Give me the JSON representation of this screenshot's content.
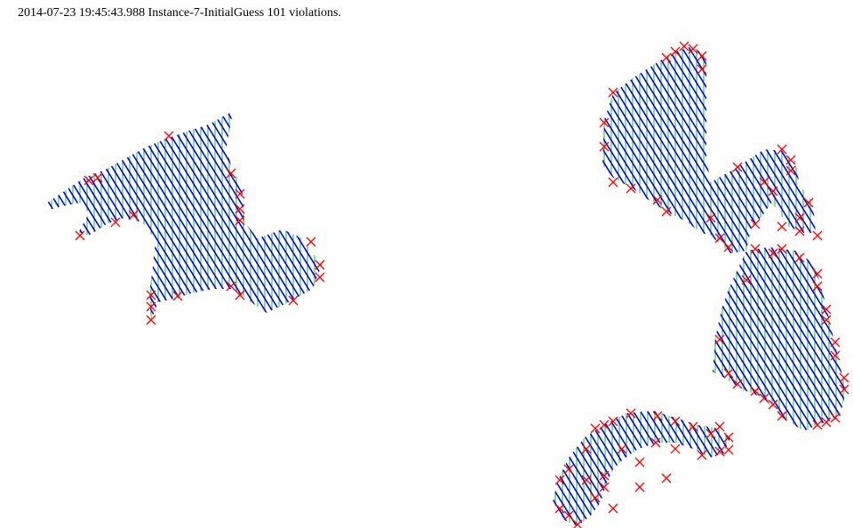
{
  "header": {
    "text": "2014-07-23 19:45:43.988 Instance-7-InitialGuess 101 violations."
  },
  "colors": {
    "background": "#ffffff",
    "text": "#000000",
    "diagonal_segment": "#0000ff",
    "vertical_segment": "#00cc00",
    "violation_marker": "#ff0000",
    "overlap_segment": "#800080"
  },
  "legend_semantics": {
    "diagonal": "blue hatch segments",
    "vertical": "green hatch segments",
    "violation": "red x markers"
  }
}
